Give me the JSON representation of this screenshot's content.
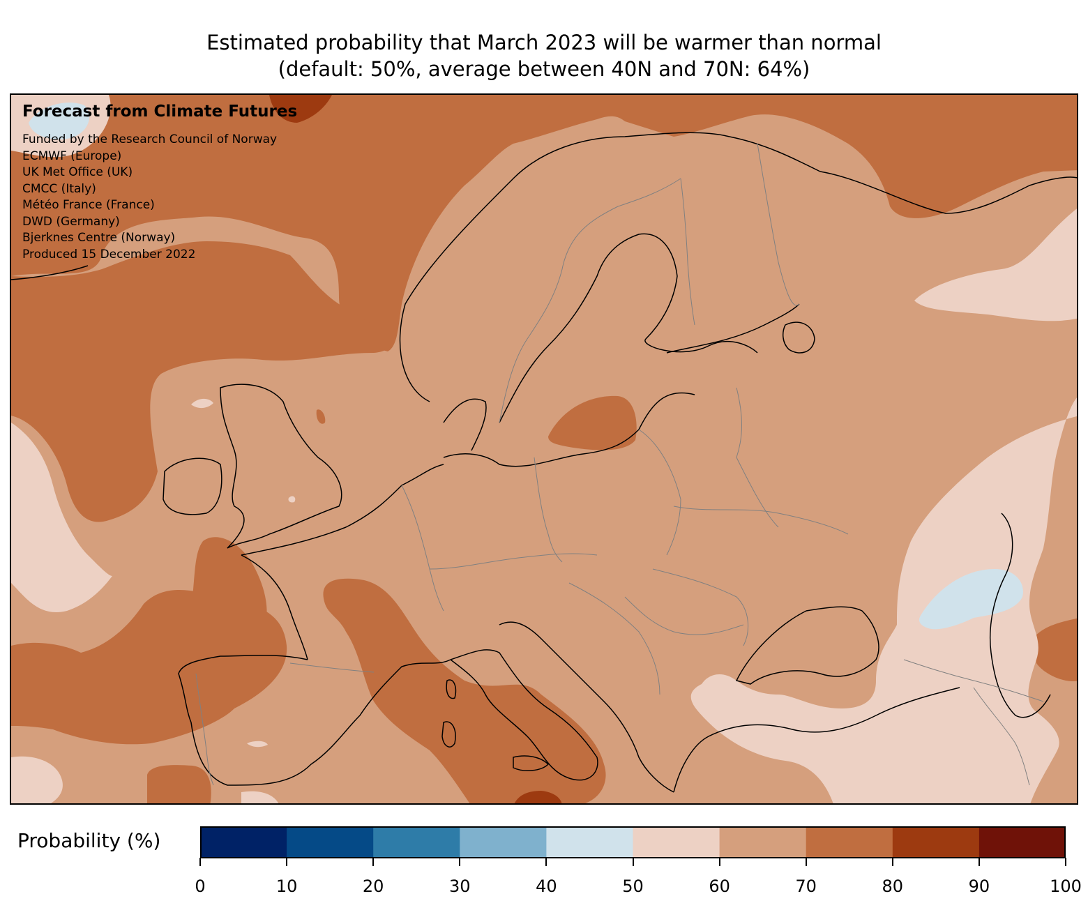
{
  "title": {
    "line1": "Estimated probability that March 2023 will be warmer than normal",
    "line2": "(default: 50%, average between 40N and 70N: 64%)"
  },
  "credits": {
    "heading": "Forecast from Climate Futures",
    "lines": [
      "Funded by the Research Council of Norway",
      "ECMWF (Europe)",
      "UK Met Office (UK)",
      "CMCC (Italy)",
      "Météo France (France)",
      "DWD (Germany)",
      "Bjerknes Centre (Norway)",
      "Produced 15 December 2022"
    ]
  },
  "colorbar": {
    "label": "Probability (%)",
    "ticks": [
      "0",
      "10",
      "20",
      "30",
      "40",
      "50",
      "60",
      "70",
      "80",
      "90",
      "100"
    ],
    "colors": [
      "#002266",
      "#054a87",
      "#2e7ca8",
      "#7fb1cd",
      "#d0e2eb",
      "#edd1c4",
      "#d59f7d",
      "#c06e40",
      "#9d3a10",
      "#6f1208"
    ]
  },
  "map": {
    "region": "Europe",
    "background_category_color": "#d59f7d",
    "probability_categories_present": [
      "40-50",
      "50-60",
      "60-70",
      "70-80",
      "80-90"
    ]
  }
}
